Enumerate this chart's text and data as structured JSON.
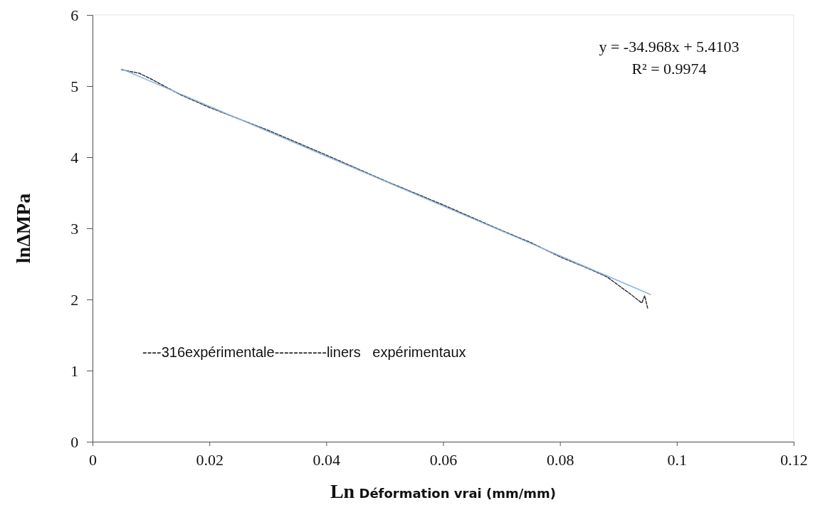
{
  "chart_data": {
    "type": "line",
    "xlabel": "Ln Déformation vrai (mm/mm)",
    "ylabel": "lnΔMPa",
    "xlim": [
      0,
      0.12
    ],
    "ylim": [
      0,
      6
    ],
    "xticks": [
      {
        "value": 0,
        "label": "0"
      },
      0.02,
      0.04,
      0.06,
      0.08,
      {
        "value": 0.1,
        "label": "0.1"
      },
      0.12
    ],
    "yticks": [
      0,
      1,
      2,
      3,
      4,
      5,
      6
    ],
    "grid": false,
    "series": [
      {
        "color": "#333333",
        "line_style": "dashed",
        "x": [
          0.005,
          0.008,
          0.01,
          0.015,
          0.02,
          0.03,
          0.04,
          0.05,
          0.06,
          0.07,
          0.075,
          0.08,
          0.085,
          0.088,
          0.09,
          0.092,
          0.094,
          0.0945,
          0.095
        ],
        "values": [
          5.23,
          5.18,
          5.1,
          4.88,
          4.7,
          4.38,
          4.03,
          3.67,
          3.33,
          2.97,
          2.8,
          2.6,
          2.43,
          2.32,
          2.2,
          2.08,
          1.95,
          2.05,
          1.88
        ]
      },
      {
        "color": "#8db4e2",
        "line_style": "solid",
        "x": [
          0.005,
          0.0955
        ],
        "values": [
          5.24,
          2.07
        ]
      }
    ],
    "annotations": [
      "y = -34.968x + 5.4103",
      "R² = 0.9974",
      "----316expérimentale-----------liners   expérimentaux"
    ]
  }
}
